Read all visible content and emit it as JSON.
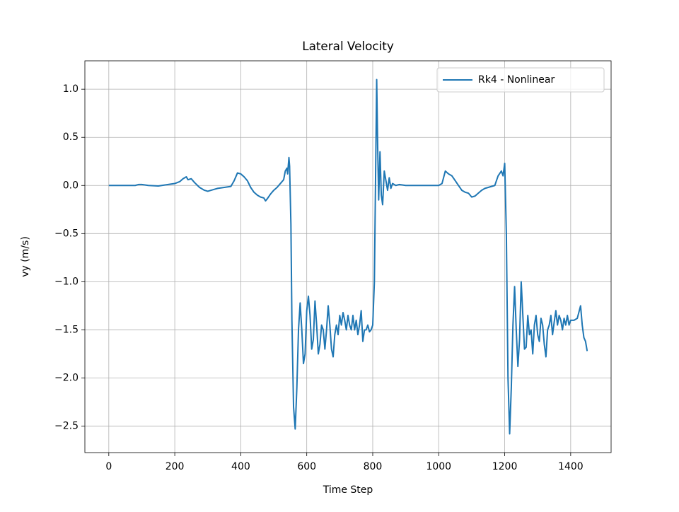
{
  "chart_data": {
    "type": "line",
    "title": "Lateral Velocity",
    "x_label": "Time Step",
    "y_label": "vy (m/s)",
    "x": [
      0,
      80,
      90,
      100,
      120,
      150,
      180,
      200,
      215,
      225,
      235,
      240,
      250,
      260,
      275,
      290,
      300,
      310,
      320,
      330,
      350,
      370,
      380,
      390,
      400,
      410,
      420,
      430,
      440,
      450,
      460,
      470,
      475,
      480,
      490,
      500,
      510,
      520,
      530,
      535,
      540,
      542,
      546,
      548,
      552,
      555,
      560,
      565,
      570,
      575,
      580,
      585,
      590,
      595,
      600,
      605,
      610,
      615,
      620,
      625,
      630,
      635,
      640,
      645,
      650,
      655,
      660,
      665,
      670,
      675,
      680,
      685,
      690,
      695,
      700,
      705,
      710,
      715,
      720,
      725,
      730,
      735,
      740,
      745,
      750,
      755,
      760,
      765,
      770,
      775,
      780,
      785,
      790,
      795,
      800,
      805,
      810,
      812,
      815,
      818,
      822,
      826,
      830,
      835,
      840,
      845,
      850,
      855,
      860,
      870,
      880,
      900,
      1000,
      1010,
      1020,
      1030,
      1040,
      1050,
      1060,
      1070,
      1080,
      1090,
      1100,
      1110,
      1120,
      1130,
      1140,
      1150,
      1170,
      1180,
      1190,
      1195,
      1200,
      1205,
      1210,
      1215,
      1220,
      1225,
      1230,
      1235,
      1240,
      1245,
      1250,
      1255,
      1260,
      1265,
      1270,
      1275,
      1280,
      1285,
      1290,
      1295,
      1300,
      1305,
      1310,
      1315,
      1320,
      1325,
      1330,
      1335,
      1340,
      1345,
      1350,
      1355,
      1360,
      1365,
      1370,
      1375,
      1380,
      1385,
      1390,
      1395,
      1400,
      1410,
      1420,
      1430,
      1435,
      1440,
      1445,
      1450
    ],
    "series": [
      {
        "name": "Rk4 - Nonlinear",
        "color": "#1f77b4",
        "values": [
          0,
          0,
          0.01,
          0.01,
          0,
          -0.005,
          0.01,
          0.02,
          0.04,
          0.07,
          0.09,
          0.06,
          0.07,
          0.03,
          -0.02,
          -0.05,
          -0.06,
          -0.05,
          -0.04,
          -0.03,
          -0.02,
          -0.01,
          0.05,
          0.13,
          0.12,
          0.09,
          0.05,
          -0.02,
          -0.07,
          -0.1,
          -0.12,
          -0.13,
          -0.16,
          -0.14,
          -0.09,
          -0.05,
          -0.02,
          0.02,
          0.06,
          0.15,
          0.18,
          0.12,
          0.29,
          0.2,
          -0.4,
          -1.4,
          -2.3,
          -2.53,
          -2.1,
          -1.5,
          -1.22,
          -1.5,
          -1.85,
          -1.75,
          -1.3,
          -1.15,
          -1.35,
          -1.7,
          -1.6,
          -1.2,
          -1.45,
          -1.75,
          -1.65,
          -1.45,
          -1.5,
          -1.7,
          -1.5,
          -1.25,
          -1.45,
          -1.7,
          -1.78,
          -1.55,
          -1.45,
          -1.55,
          -1.35,
          -1.45,
          -1.32,
          -1.4,
          -1.5,
          -1.35,
          -1.45,
          -1.5,
          -1.35,
          -1.5,
          -1.4,
          -1.55,
          -1.45,
          -1.3,
          -1.62,
          -1.5,
          -1.5,
          -1.45,
          -1.52,
          -1.5,
          -1.45,
          -1.0,
          0.5,
          1.1,
          0.4,
          -0.15,
          0.35,
          -0.1,
          -0.2,
          0.15,
          0.05,
          -0.05,
          0.08,
          -0.03,
          0.02,
          0,
          0.01,
          0,
          0,
          0.02,
          0.15,
          0.12,
          0.1,
          0.05,
          0,
          -0.05,
          -0.07,
          -0.08,
          -0.12,
          -0.11,
          -0.08,
          -0.05,
          -0.03,
          -0.02,
          0,
          0.1,
          0.15,
          0.1,
          0.23,
          -0.5,
          -2.0,
          -2.58,
          -2.1,
          -1.45,
          -1.05,
          -1.5,
          -1.88,
          -1.6,
          -1.0,
          -1.35,
          -1.7,
          -1.68,
          -1.35,
          -1.55,
          -1.5,
          -1.75,
          -1.45,
          -1.35,
          -1.55,
          -1.62,
          -1.38,
          -1.45,
          -1.65,
          -1.78,
          -1.5,
          -1.45,
          -1.35,
          -1.55,
          -1.42,
          -1.3,
          -1.45,
          -1.35,
          -1.4,
          -1.5,
          -1.38,
          -1.45,
          -1.35,
          -1.45,
          -1.4,
          -1.4,
          -1.38,
          -1.25,
          -1.45,
          -1.58,
          -1.62,
          -1.72
        ]
      }
    ],
    "xlim": [
      -72.5,
      1522.5
    ],
    "ylim": [
      -2.775,
      1.295
    ],
    "xticks": [
      0,
      200,
      400,
      600,
      800,
      1000,
      1200,
      1400
    ],
    "yticks": [
      {
        "value": -2.5,
        "label": "−2.5"
      },
      {
        "value": -2.0,
        "label": "−2.0"
      },
      {
        "value": -1.5,
        "label": "−1.5"
      },
      {
        "value": -1.0,
        "label": "−1.0"
      },
      {
        "value": -0.5,
        "label": "−0.5"
      },
      {
        "value": 0,
        "label": "0.0"
      },
      0.5,
      {
        "value": 1.0,
        "label": "1.0"
      }
    ],
    "grid": true,
    "legend": "upper right"
  }
}
